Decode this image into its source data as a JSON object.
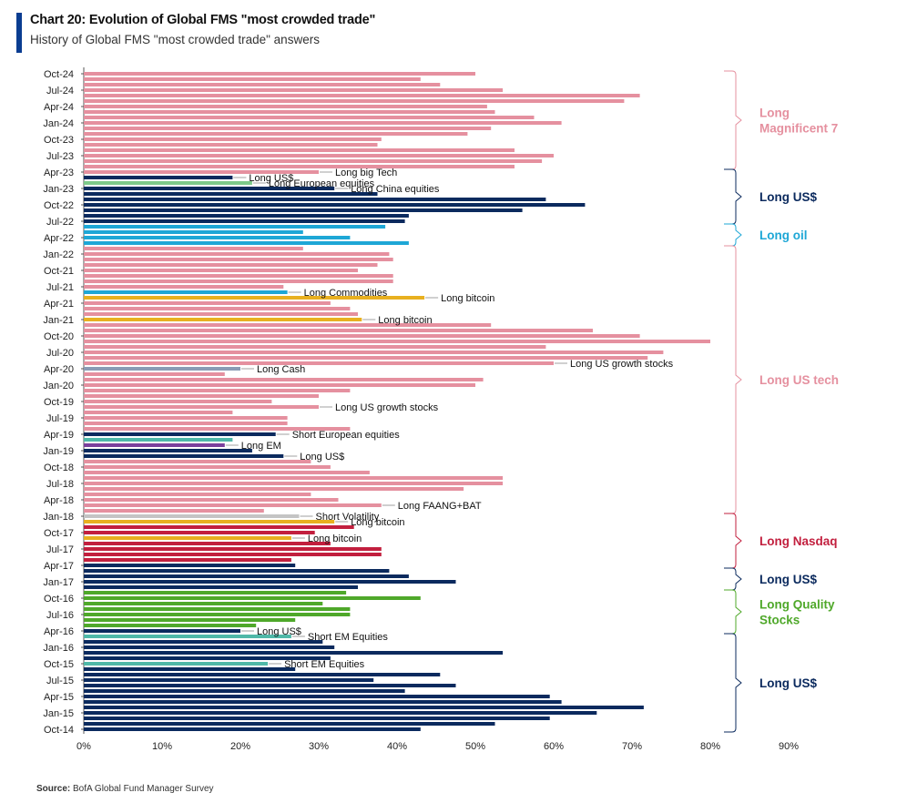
{
  "title": "Chart 20: Evolution of Global FMS \"most crowded trade\"",
  "subtitle": "History of Global FMS \"most crowded trade\" answers",
  "source_label": "Source:",
  "source_text": "BofA Global Fund Manager Survey",
  "colors": {
    "accent": "#0a3d91",
    "pink": "#e5909f",
    "navy": "#0b2a5e",
    "green": "#7dc98a",
    "cyan": "#1ea7d6",
    "yellow": "#e8b020",
    "gray": "#8a9bb5",
    "purple": "#7a3f9c",
    "red": "#c21f3e",
    "lightgray": "#c4c4c4",
    "lime": "#4fa82a",
    "teal": "#4fb8a8"
  },
  "chart_data": {
    "type": "bar",
    "orientation": "horizontal",
    "xlim": [
      0,
      90
    ],
    "x_ticks": [
      "0%",
      "10%",
      "20%",
      "30%",
      "40%",
      "50%",
      "60%",
      "70%",
      "80%",
      "90%"
    ],
    "grid": false,
    "y_tick_labels": [
      "Oct-24",
      "Jul-24",
      "Apr-24",
      "Jan-24",
      "Oct-23",
      "Jul-23",
      "Apr-23",
      "Jan-23",
      "Oct-22",
      "Jul-22",
      "Apr-22",
      "Jan-22",
      "Oct-21",
      "Jul-21",
      "Apr-21",
      "Jan-21",
      "Oct-20",
      "Jul-20",
      "Apr-20",
      "Jan-20",
      "Oct-19",
      "Jul-19",
      "Apr-19",
      "Jan-19",
      "Oct-18",
      "Jul-18",
      "Apr-18",
      "Jan-18",
      "Oct-17",
      "Jul-17",
      "Apr-17",
      "Jan-17",
      "Oct-16",
      "Jul-16",
      "Apr-16",
      "Jan-16",
      "Oct-15",
      "Jul-15",
      "Apr-15",
      "Jan-15",
      "Oct-14"
    ],
    "bars": [
      {
        "date": "Oct-24",
        "value": 50,
        "color": "pink"
      },
      {
        "date": "Sep-24",
        "value": 43,
        "color": "pink"
      },
      {
        "date": "Aug-24",
        "value": 45.5,
        "color": "pink"
      },
      {
        "date": "Jul-24",
        "value": 53.5,
        "color": "pink"
      },
      {
        "date": "Jun-24",
        "value": 71,
        "color": "pink"
      },
      {
        "date": "May-24",
        "value": 69,
        "color": "pink"
      },
      {
        "date": "Apr-24",
        "value": 51.5,
        "color": "pink"
      },
      {
        "date": "Mar-24",
        "value": 52.5,
        "color": "pink"
      },
      {
        "date": "Feb-24",
        "value": 57.5,
        "color": "pink"
      },
      {
        "date": "Jan-24",
        "value": 61,
        "color": "pink"
      },
      {
        "date": "Dec-23",
        "value": 52,
        "color": "pink"
      },
      {
        "date": "Nov-23",
        "value": 49,
        "color": "pink"
      },
      {
        "date": "Oct-23",
        "value": 38,
        "color": "pink"
      },
      {
        "date": "Sep-23",
        "value": 37.5,
        "color": "pink"
      },
      {
        "date": "Aug-23",
        "value": 55,
        "color": "pink"
      },
      {
        "date": "Jul-23",
        "value": 60,
        "color": "pink"
      },
      {
        "date": "Jun-23",
        "value": 58.5,
        "color": "pink"
      },
      {
        "date": "May-23",
        "value": 55,
        "color": "pink"
      },
      {
        "date": "Apr-23",
        "value": 30,
        "color": "pink",
        "label": "Long big Tech"
      },
      {
        "date": "Mar-23",
        "value": 19,
        "color": "navy",
        "label": "Long US$"
      },
      {
        "date": "Feb-23",
        "value": 21.5,
        "color": "green",
        "label": "Long European equities"
      },
      {
        "date": "Jan-23",
        "value": 32,
        "color": "navy",
        "label": "Long China equities"
      },
      {
        "date": "Dec-22",
        "value": 37.5,
        "color": "navy"
      },
      {
        "date": "Nov-22",
        "value": 59,
        "color": "navy"
      },
      {
        "date": "Oct-22",
        "value": 64,
        "color": "navy"
      },
      {
        "date": "Sep-22",
        "value": 56,
        "color": "navy"
      },
      {
        "date": "Aug-22",
        "value": 41.5,
        "color": "navy"
      },
      {
        "date": "Jul-22",
        "value": 41,
        "color": "navy"
      },
      {
        "date": "Jun-22",
        "value": 38.5,
        "color": "cyan"
      },
      {
        "date": "May-22",
        "value": 28,
        "color": "cyan"
      },
      {
        "date": "Apr-22",
        "value": 34,
        "color": "cyan"
      },
      {
        "date": "Mar-22",
        "value": 41.5,
        "color": "cyan"
      },
      {
        "date": "Feb-22",
        "value": 28,
        "color": "pink"
      },
      {
        "date": "Jan-22",
        "value": 39,
        "color": "pink"
      },
      {
        "date": "Dec-21",
        "value": 39.5,
        "color": "pink"
      },
      {
        "date": "Nov-21",
        "value": 37.5,
        "color": "pink"
      },
      {
        "date": "Oct-21",
        "value": 35,
        "color": "pink"
      },
      {
        "date": "Sep-21",
        "value": 39.5,
        "color": "pink"
      },
      {
        "date": "Aug-21",
        "value": 39.5,
        "color": "pink"
      },
      {
        "date": "Jul-21",
        "value": 25.5,
        "color": "pink"
      },
      {
        "date": "Jun-21",
        "value": 26,
        "color": "cyan",
        "label": "Long Commodities"
      },
      {
        "date": "May-21",
        "value": 43.5,
        "color": "yellow",
        "label": "Long bitcoin"
      },
      {
        "date": "Apr-21",
        "value": 31.5,
        "color": "pink"
      },
      {
        "date": "Mar-21",
        "value": 34,
        "color": "pink"
      },
      {
        "date": "Feb-21",
        "value": 35,
        "color": "pink"
      },
      {
        "date": "Jan-21",
        "value": 35.5,
        "color": "yellow",
        "label": "Long bitcoin"
      },
      {
        "date": "Dec-20",
        "value": 52,
        "color": "pink"
      },
      {
        "date": "Nov-20",
        "value": 65,
        "color": "pink"
      },
      {
        "date": "Oct-20",
        "value": 71,
        "color": "pink"
      },
      {
        "date": "Sep-20",
        "value": 80,
        "color": "pink"
      },
      {
        "date": "Aug-20",
        "value": 59,
        "color": "pink"
      },
      {
        "date": "Jul-20",
        "value": 74,
        "color": "pink"
      },
      {
        "date": "Jun-20",
        "value": 72,
        "color": "pink"
      },
      {
        "date": "May-20",
        "value": 60,
        "color": "pink",
        "label": "Long US growth stocks"
      },
      {
        "date": "Apr-20",
        "value": 20,
        "color": "gray",
        "label": "Long Cash"
      },
      {
        "date": "Mar-20",
        "value": 18,
        "color": "pink"
      },
      {
        "date": "Feb-20",
        "value": 51,
        "color": "pink"
      },
      {
        "date": "Jan-20",
        "value": 50,
        "color": "pink"
      },
      {
        "date": "Dec-19",
        "value": 34,
        "color": "pink"
      },
      {
        "date": "Nov-19",
        "value": 30,
        "color": "pink"
      },
      {
        "date": "Oct-19",
        "value": 24,
        "color": "pink"
      },
      {
        "date": "Sep-19",
        "value": 30,
        "color": "pink",
        "label": "Long US growth stocks"
      },
      {
        "date": "Aug-19",
        "value": 19,
        "color": "pink"
      },
      {
        "date": "Jul-19",
        "value": 26,
        "color": "pink"
      },
      {
        "date": "Jun-19",
        "value": 26,
        "color": "pink"
      },
      {
        "date": "May-19",
        "value": 34,
        "color": "pink"
      },
      {
        "date": "Apr-19",
        "value": 24.5,
        "color": "navy",
        "label": "Short European equities"
      },
      {
        "date": "Mar-19",
        "value": 19,
        "color": "teal"
      },
      {
        "date": "Feb-19",
        "value": 18,
        "color": "purple",
        "label": "Long EM"
      },
      {
        "date": "Jan-19",
        "value": 21.5,
        "color": "navy"
      },
      {
        "date": "Dec-18",
        "value": 25.5,
        "color": "navy",
        "label": "Long US$"
      },
      {
        "date": "Nov-18",
        "value": 29,
        "color": "pink"
      },
      {
        "date": "Oct-18",
        "value": 31.5,
        "color": "pink"
      },
      {
        "date": "Sep-18",
        "value": 36.5,
        "color": "pink"
      },
      {
        "date": "Aug-18",
        "value": 53.5,
        "color": "pink"
      },
      {
        "date": "Jul-18",
        "value": 53.5,
        "color": "pink"
      },
      {
        "date": "Jun-18",
        "value": 48.5,
        "color": "pink"
      },
      {
        "date": "May-18",
        "value": 29,
        "color": "pink"
      },
      {
        "date": "Apr-18",
        "value": 32.5,
        "color": "pink"
      },
      {
        "date": "Mar-18",
        "value": 38,
        "color": "pink",
        "label": "Long FAANG+BAT"
      },
      {
        "date": "Feb-18",
        "value": 23,
        "color": "pink"
      },
      {
        "date": "Jan-18",
        "value": 27.5,
        "color": "lightgray",
        "label": "Short Volatility"
      },
      {
        "date": "Dec-17",
        "value": 32,
        "color": "yellow",
        "label": "Long bitcoin"
      },
      {
        "date": "Nov-17",
        "value": 34.5,
        "color": "red"
      },
      {
        "date": "Oct-17",
        "value": 29.5,
        "color": "red"
      },
      {
        "date": "Sep-17",
        "value": 26.5,
        "color": "yellow",
        "label": "Long bitcoin"
      },
      {
        "date": "Aug-17",
        "value": 31.5,
        "color": "red"
      },
      {
        "date": "Jul-17",
        "value": 38,
        "color": "red"
      },
      {
        "date": "Jun-17",
        "value": 38,
        "color": "red"
      },
      {
        "date": "May-17",
        "value": 26.5,
        "color": "red"
      },
      {
        "date": "Apr-17",
        "value": 27,
        "color": "navy"
      },
      {
        "date": "Mar-17",
        "value": 39,
        "color": "navy"
      },
      {
        "date": "Feb-17",
        "value": 41.5,
        "color": "navy"
      },
      {
        "date": "Jan-17",
        "value": 47.5,
        "color": "navy"
      },
      {
        "date": "Dec-16",
        "value": 35,
        "color": "navy"
      },
      {
        "date": "Nov-16",
        "value": 33.5,
        "color": "lime"
      },
      {
        "date": "Oct-16",
        "value": 43,
        "color": "lime"
      },
      {
        "date": "Sep-16",
        "value": 30.5,
        "color": "lime"
      },
      {
        "date": "Aug-16",
        "value": 34,
        "color": "lime"
      },
      {
        "date": "Jul-16",
        "value": 34,
        "color": "lime"
      },
      {
        "date": "Jun-16",
        "value": 27,
        "color": "lime"
      },
      {
        "date": "May-16",
        "value": 22,
        "color": "lime"
      },
      {
        "date": "Apr-16",
        "value": 20,
        "color": "navy",
        "label": "Long US$"
      },
      {
        "date": "Mar-16",
        "value": 26.5,
        "color": "teal",
        "label": "Short EM Equities"
      },
      {
        "date": "Feb-16",
        "value": 30.5,
        "color": "navy"
      },
      {
        "date": "Jan-16",
        "value": 32,
        "color": "navy"
      },
      {
        "date": "Dec-15",
        "value": 53.5,
        "color": "navy"
      },
      {
        "date": "Nov-15",
        "value": 31.5,
        "color": "navy"
      },
      {
        "date": "Oct-15",
        "value": 23.5,
        "color": "teal",
        "label": "Short EM Equities"
      },
      {
        "date": "Sep-15",
        "value": 27,
        "color": "navy"
      },
      {
        "date": "Aug-15",
        "value": 45.5,
        "color": "navy"
      },
      {
        "date": "Jul-15",
        "value": 37,
        "color": "navy"
      },
      {
        "date": "Jun-15",
        "value": 47.5,
        "color": "navy"
      },
      {
        "date": "May-15",
        "value": 41,
        "color": "navy"
      },
      {
        "date": "Apr-15",
        "value": 59.5,
        "color": "navy"
      },
      {
        "date": "Mar-15",
        "value": 61,
        "color": "navy"
      },
      {
        "date": "Feb-15",
        "value": 71.5,
        "color": "navy"
      },
      {
        "date": "Jan-15",
        "value": 65.5,
        "color": "navy"
      },
      {
        "date": "Dec-14",
        "value": 59.5,
        "color": "navy"
      },
      {
        "date": "Nov-14",
        "value": 52.5,
        "color": "navy"
      },
      {
        "date": "Oct-14",
        "value": 43,
        "color": "navy"
      }
    ],
    "groups": [
      {
        "label": "Long\nMagnificent 7",
        "from": "Oct-24",
        "to": "May-23",
        "color": "pink"
      },
      {
        "label": "Long US$",
        "from": "Apr-23",
        "to": "Jul-22",
        "color": "navy"
      },
      {
        "label": "Long oil",
        "from": "Jun-22",
        "to": "Mar-22",
        "color": "cyan"
      },
      {
        "label": "Long US tech",
        "from": "Feb-22",
        "to": "Feb-18",
        "color": "pink"
      },
      {
        "label": "Long Nasdaq",
        "from": "Jan-18",
        "to": "Apr-17",
        "color": "red"
      },
      {
        "label": "Long US$",
        "from": "Mar-17",
        "to": "Dec-16",
        "color": "navy"
      },
      {
        "label": "Long Quality\nStocks",
        "from": "Nov-16",
        "to": "Apr-16",
        "color": "lime"
      },
      {
        "label": "Long US$",
        "from": "Mar-16",
        "to": "Oct-14",
        "color": "navy"
      }
    ]
  }
}
